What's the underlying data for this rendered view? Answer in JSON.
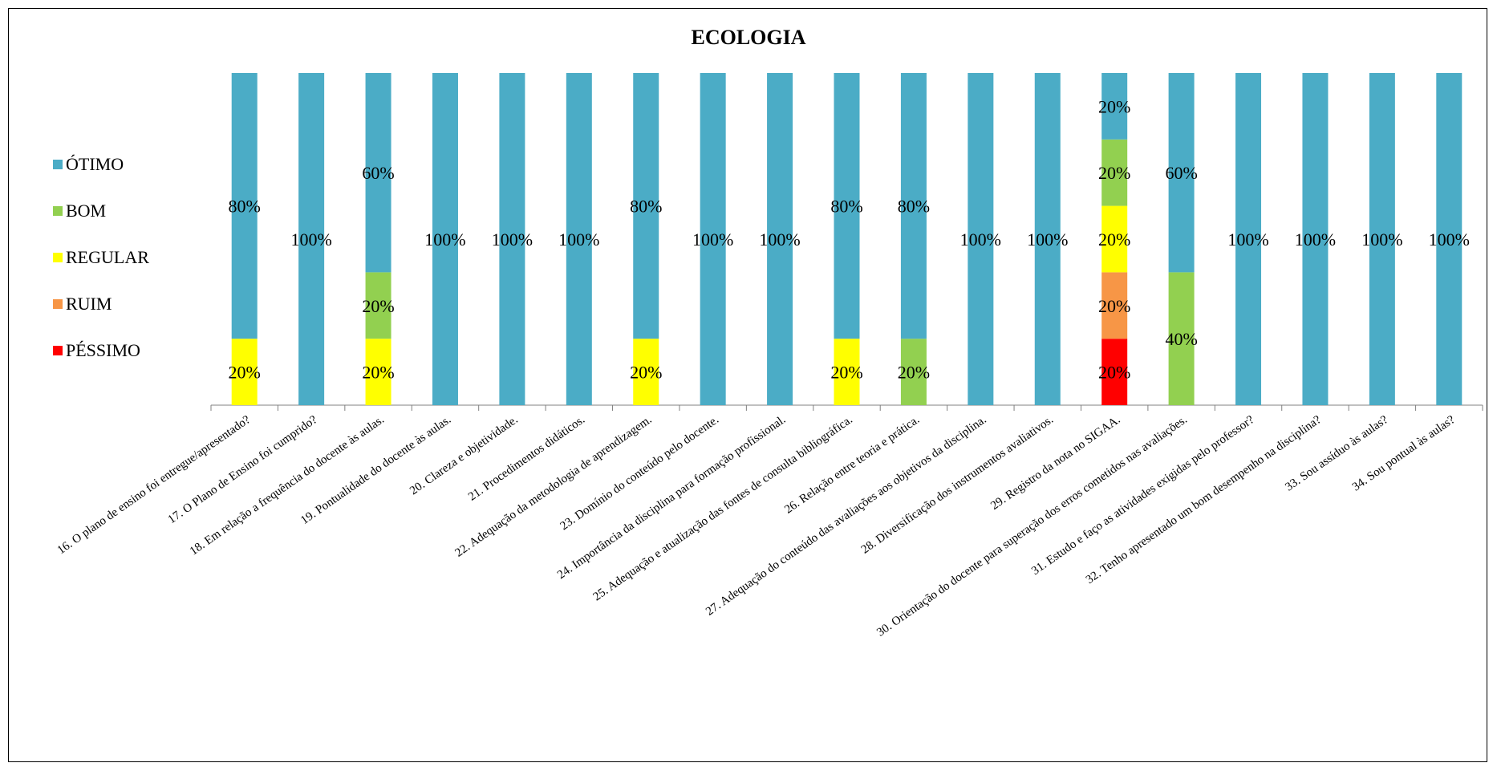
{
  "chart_data": {
    "type": "bar",
    "stacked": true,
    "title": "ECOLOGIA",
    "xlabel": "",
    "ylabel": "",
    "ylim": [
      0,
      100
    ],
    "value_format": "percent",
    "legend_position": "left",
    "grid": false,
    "categories": [
      "16. O plano de ensino foi entregue/apresentado?",
      "17.  O Plano de Ensino foi cumprido?",
      "18.  Em relação a frequência do docente às aulas.",
      "19. Pontualidade do docente às aulas.",
      "20. Clareza e objetividade.",
      "21. Procedimentos didáticos.",
      "22. Adequação da metodologia de aprendizagem.",
      "23. Domínio do conteúdo pelo docente.",
      "24. Importância da disciplina para formação profissional.",
      "25. Adequação e atualização das fontes de consulta bibliográfica.",
      "26. Relação entre teoria e prática.",
      "27. Adequação do conteúdo das avaliações aos objetivos da disciplina.",
      "28. Diversificação dos instrumentos avaliativos.",
      "29. Registro da nota no SIGAA.",
      "30. Orientação do docente para superação dos erros cometidos nas avaliações.",
      "31. Estudo e faço as atividades exigidas pelo professor?",
      "32. Tenho apresentado um bom desempenho na disciplina?",
      "33. Sou assíduo às aulas?",
      "34. Sou pontual às aulas?"
    ],
    "series": [
      {
        "name": "PÉSSIMO",
        "color": "#ff0000",
        "values": [
          0,
          0,
          0,
          0,
          0,
          0,
          0,
          0,
          0,
          0,
          0,
          0,
          0,
          20,
          0,
          0,
          0,
          0,
          0
        ]
      },
      {
        "name": "RUIM",
        "color": "#f79646",
        "values": [
          0,
          0,
          0,
          0,
          0,
          0,
          0,
          0,
          0,
          0,
          0,
          0,
          0,
          20,
          0,
          0,
          0,
          0,
          0
        ]
      },
      {
        "name": "REGULAR",
        "color": "#ffff00",
        "values": [
          20,
          0,
          20,
          0,
          0,
          0,
          20,
          0,
          0,
          20,
          0,
          0,
          0,
          20,
          0,
          0,
          0,
          0,
          0
        ]
      },
      {
        "name": "BOM",
        "color": "#92d050",
        "values": [
          0,
          0,
          20,
          0,
          0,
          0,
          0,
          0,
          0,
          0,
          20,
          0,
          0,
          20,
          40,
          0,
          0,
          0,
          0
        ]
      },
      {
        "name": "ÓTIMO",
        "color": "#4bacc6",
        "values": [
          80,
          100,
          60,
          100,
          100,
          100,
          80,
          100,
          100,
          80,
          80,
          100,
          100,
          20,
          60,
          100,
          100,
          100,
          100
        ]
      }
    ],
    "legend_order": [
      "ÓTIMO",
      "BOM",
      "REGULAR",
      "RUIM",
      "PÉSSIMO"
    ]
  }
}
